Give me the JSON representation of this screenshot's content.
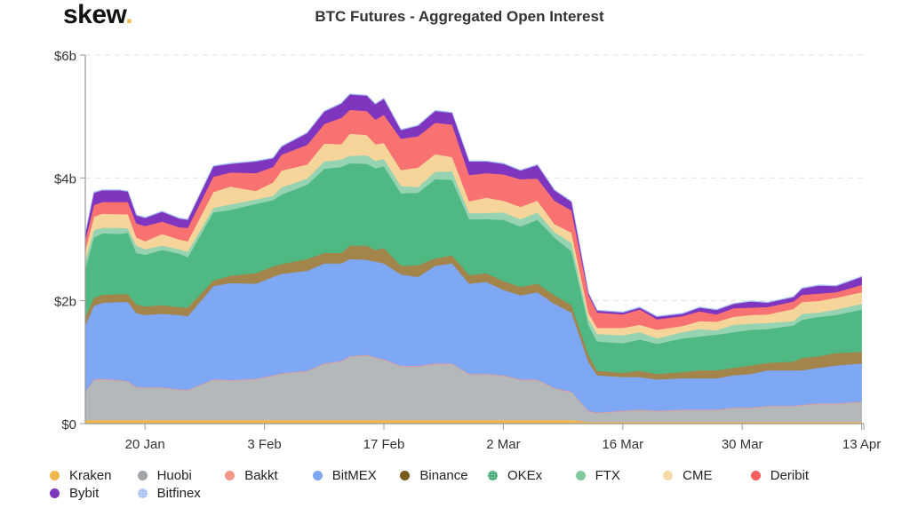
{
  "logo": {
    "text": "skew",
    "dot": "."
  },
  "title": "BTC Futures - Aggregated Open Interest",
  "chart_data": {
    "type": "area",
    "stacked": true,
    "title": "BTC Futures - Aggregated Open Interest",
    "xlabel": "",
    "ylabel": "",
    "unit": "USD billions",
    "ylim": [
      0,
      6
    ],
    "xlim": [
      "2020-01-13",
      "2020-04-13"
    ],
    "grid": "horizontal dashed",
    "legend_position": "bottom",
    "y_ticks": [
      {
        "value": 0,
        "label": "$0"
      },
      {
        "value": 2,
        "label": "$2b"
      },
      {
        "value": 4,
        "label": "$4b"
      },
      {
        "value": 6,
        "label": "$6b"
      }
    ],
    "x_ticks": [
      {
        "date": "2020-01-20",
        "label": "20 Jan"
      },
      {
        "date": "2020-02-03",
        "label": "3 Feb"
      },
      {
        "date": "2020-02-17",
        "label": "17 Feb"
      },
      {
        "date": "2020-03-02",
        "label": "2 Mar"
      },
      {
        "date": "2020-03-16",
        "label": "16 Mar"
      },
      {
        "date": "2020-03-30",
        "label": "30 Mar"
      },
      {
        "date": "2020-04-13",
        "label": "13 Apr"
      }
    ],
    "x": [
      "2020-01-13",
      "2020-01-14",
      "2020-01-15",
      "2020-01-17",
      "2020-01-18",
      "2020-01-19",
      "2020-01-20",
      "2020-01-22",
      "2020-01-24",
      "2020-01-25",
      "2020-01-28",
      "2020-01-30",
      "2020-02-02",
      "2020-02-04",
      "2020-02-05",
      "2020-02-08",
      "2020-02-10",
      "2020-02-12",
      "2020-02-13",
      "2020-02-15",
      "2020-02-16",
      "2020-02-17",
      "2020-02-19",
      "2020-02-21",
      "2020-02-23",
      "2020-02-25",
      "2020-02-27",
      "2020-02-29",
      "2020-03-02",
      "2020-03-04",
      "2020-03-06",
      "2020-03-08",
      "2020-03-10",
      "2020-03-12",
      "2020-03-13",
      "2020-03-16",
      "2020-03-18",
      "2020-03-20",
      "2020-03-23",
      "2020-03-25",
      "2020-03-27",
      "2020-03-29",
      "2020-03-31",
      "2020-04-02",
      "2020-04-05",
      "2020-04-06",
      "2020-04-08",
      "2020-04-10",
      "2020-04-13"
    ],
    "series": [
      {
        "name": "Kraken",
        "color": "#F2B74C",
        "values": [
          0.06,
          0.06,
          0.06,
          0.06,
          0.06,
          0.06,
          0.06,
          0.06,
          0.06,
          0.06,
          0.06,
          0.06,
          0.06,
          0.06,
          0.06,
          0.06,
          0.06,
          0.06,
          0.06,
          0.06,
          0.06,
          0.06,
          0.06,
          0.06,
          0.06,
          0.06,
          0.06,
          0.06,
          0.06,
          0.06,
          0.06,
          0.06,
          0.06,
          0.03,
          0.03,
          0.03,
          0.03,
          0.03,
          0.03,
          0.03,
          0.03,
          0.03,
          0.03,
          0.03,
          0.03,
          0.03,
          0.03,
          0.03,
          0.03
        ]
      },
      {
        "name": "Huobi",
        "color": "#B3B8BA",
        "values": [
          0.45,
          0.65,
          0.66,
          0.64,
          0.62,
          0.53,
          0.52,
          0.52,
          0.49,
          0.48,
          0.65,
          0.64,
          0.66,
          0.72,
          0.75,
          0.79,
          0.91,
          0.95,
          1.03,
          1.05,
          1.01,
          0.98,
          0.87,
          0.87,
          0.91,
          0.91,
          0.74,
          0.74,
          0.72,
          0.65,
          0.65,
          0.51,
          0.45,
          0.17,
          0.14,
          0.17,
          0.19,
          0.17,
          0.19,
          0.19,
          0.19,
          0.22,
          0.22,
          0.25,
          0.25,
          0.27,
          0.29,
          0.29,
          0.32
        ]
      },
      {
        "name": "Bakkt",
        "color": "#F4968A",
        "values": [
          0.01,
          0.01,
          0.01,
          0.01,
          0.01,
          0.01,
          0.01,
          0.01,
          0.01,
          0.01,
          0.01,
          0.01,
          0.01,
          0.01,
          0.01,
          0.01,
          0.01,
          0.01,
          0.01,
          0.01,
          0.01,
          0.01,
          0.01,
          0.01,
          0.01,
          0.01,
          0.01,
          0.01,
          0.01,
          0.01,
          0.01,
          0.01,
          0.01,
          0.01,
          0.01,
          0.01,
          0.01,
          0.01,
          0.01,
          0.01,
          0.01,
          0.01,
          0.01,
          0.01,
          0.01,
          0.01,
          0.01,
          0.01,
          0.01
        ]
      },
      {
        "name": "BitMEX",
        "color": "#7EA7F4",
        "values": [
          1.08,
          1.2,
          1.24,
          1.27,
          1.29,
          1.2,
          1.18,
          1.2,
          1.21,
          1.2,
          1.52,
          1.58,
          1.55,
          1.6,
          1.62,
          1.63,
          1.63,
          1.59,
          1.58,
          1.55,
          1.56,
          1.56,
          1.49,
          1.45,
          1.59,
          1.63,
          1.47,
          1.5,
          1.39,
          1.37,
          1.42,
          1.37,
          1.29,
          0.79,
          0.61,
          0.55,
          0.53,
          0.51,
          0.51,
          0.51,
          0.51,
          0.53,
          0.55,
          0.58,
          0.58,
          0.56,
          0.58,
          0.62,
          0.62
        ]
      },
      {
        "name": "Binance",
        "color": "#A3844A",
        "values": [
          0.14,
          0.13,
          0.13,
          0.13,
          0.13,
          0.14,
          0.14,
          0.14,
          0.13,
          0.14,
          0.09,
          0.12,
          0.17,
          0.17,
          0.16,
          0.19,
          0.17,
          0.17,
          0.22,
          0.23,
          0.19,
          0.25,
          0.14,
          0.19,
          0.12,
          0.13,
          0.14,
          0.14,
          0.14,
          0.14,
          0.14,
          0.14,
          0.12,
          0.12,
          0.07,
          0.07,
          0.1,
          0.09,
          0.1,
          0.13,
          0.13,
          0.12,
          0.14,
          0.12,
          0.14,
          0.2,
          0.19,
          0.2,
          0.19
        ]
      },
      {
        "name": "OKEx",
        "color": "#4FB883",
        "values": [
          0.79,
          0.98,
          1.0,
          0.98,
          1.0,
          0.84,
          0.84,
          0.9,
          0.87,
          0.82,
          1.11,
          1.07,
          1.13,
          1.08,
          1.13,
          1.21,
          1.37,
          1.4,
          1.34,
          1.33,
          1.33,
          1.33,
          1.18,
          1.18,
          1.29,
          1.23,
          0.91,
          0.88,
          1.0,
          0.98,
          1.04,
          0.94,
          0.87,
          0.48,
          0.48,
          0.48,
          0.51,
          0.49,
          0.55,
          0.55,
          0.58,
          0.58,
          0.58,
          0.55,
          0.59,
          0.62,
          0.64,
          0.62,
          0.69
        ]
      },
      {
        "name": "FTX",
        "color": "#95D3B3",
        "values": [
          0.13,
          0.12,
          0.09,
          0.1,
          0.07,
          0.12,
          0.09,
          0.07,
          0.07,
          0.09,
          0.07,
          0.09,
          0.07,
          0.07,
          0.12,
          0.1,
          0.12,
          0.12,
          0.12,
          0.14,
          0.12,
          0.12,
          0.12,
          0.09,
          0.12,
          0.14,
          0.1,
          0.1,
          0.12,
          0.12,
          0.12,
          0.09,
          0.14,
          0.1,
          0.12,
          0.13,
          0.12,
          0.09,
          0.1,
          0.12,
          0.07,
          0.12,
          0.1,
          0.1,
          0.07,
          0.1,
          0.07,
          0.09,
          0.09
        ]
      },
      {
        "name": "CME",
        "color": "#F5D59A",
        "values": [
          0.16,
          0.22,
          0.23,
          0.22,
          0.23,
          0.13,
          0.13,
          0.19,
          0.16,
          0.17,
          0.26,
          0.29,
          0.14,
          0.22,
          0.27,
          0.23,
          0.29,
          0.25,
          0.36,
          0.33,
          0.27,
          0.26,
          0.26,
          0.32,
          0.29,
          0.23,
          0.19,
          0.25,
          0.19,
          0.2,
          0.19,
          0.13,
          0.17,
          0.1,
          0.1,
          0.12,
          0.12,
          0.14,
          0.1,
          0.13,
          0.14,
          0.13,
          0.14,
          0.14,
          0.2,
          0.19,
          0.19,
          0.19,
          0.19
        ]
      },
      {
        "name": "Deribit",
        "color": "#F87272",
        "values": [
          0.17,
          0.19,
          0.19,
          0.2,
          0.2,
          0.23,
          0.25,
          0.2,
          0.2,
          0.22,
          0.25,
          0.23,
          0.29,
          0.25,
          0.26,
          0.32,
          0.32,
          0.43,
          0.39,
          0.39,
          0.4,
          0.46,
          0.51,
          0.51,
          0.51,
          0.53,
          0.43,
          0.4,
          0.43,
          0.45,
          0.36,
          0.38,
          0.36,
          0.29,
          0.25,
          0.22,
          0.25,
          0.17,
          0.16,
          0.16,
          0.12,
          0.14,
          0.12,
          0.12,
          0.12,
          0.12,
          0.12,
          0.09,
          0.12
        ]
      },
      {
        "name": "Bybit",
        "color": "#7F35BE",
        "values": [
          0.1,
          0.2,
          0.19,
          0.19,
          0.17,
          0.13,
          0.13,
          0.16,
          0.14,
          0.13,
          0.17,
          0.14,
          0.19,
          0.14,
          0.13,
          0.19,
          0.2,
          0.23,
          0.25,
          0.25,
          0.25,
          0.26,
          0.14,
          0.17,
          0.19,
          0.19,
          0.22,
          0.19,
          0.17,
          0.14,
          0.22,
          0.17,
          0.14,
          0.03,
          0.03,
          0.03,
          0.03,
          0.04,
          0.04,
          0.06,
          0.07,
          0.07,
          0.1,
          0.07,
          0.07,
          0.1,
          0.13,
          0.1,
          0.13
        ]
      },
      {
        "name": "Bitfinex",
        "color": "#A7BFF2",
        "values": [
          0.01,
          0.01,
          0.01,
          0.01,
          0.01,
          0.01,
          0.01,
          0.01,
          0.01,
          0.01,
          0.01,
          0.01,
          0.01,
          0.01,
          0.01,
          0.01,
          0.01,
          0.01,
          0.01,
          0.01,
          0.01,
          0.01,
          0.01,
          0.01,
          0.01,
          0.01,
          0.01,
          0.01,
          0.01,
          0.01,
          0.01,
          0.01,
          0.01,
          0.01,
          0.01,
          0.01,
          0.01,
          0.01,
          0.01,
          0.01,
          0.01,
          0.01,
          0.01,
          0.01,
          0.01,
          0.01,
          0.01,
          0.01,
          0.01
        ]
      }
    ]
  },
  "legend": [
    {
      "label": "Kraken",
      "color": "#F2B74C",
      "marker": "solid"
    },
    {
      "label": "Huobi",
      "color": "#9EA3A8",
      "marker": "solid"
    },
    {
      "label": "Bakkt",
      "color": "#F4968A",
      "marker": "solid"
    },
    {
      "label": "BitMEX",
      "color": "#7EA7F4",
      "marker": "solid"
    },
    {
      "label": "Binance",
      "color": "#7A5A1E",
      "marker": "solid"
    },
    {
      "label": "OKEx",
      "color": "#2E9E63",
      "marker": "dotted"
    },
    {
      "label": "FTX",
      "color": "#7FCB9F",
      "marker": "solid"
    },
    {
      "label": "CME",
      "color": "#F5CF8A",
      "marker": "dotted"
    },
    {
      "label": "Deribit",
      "color": "#F55F5F",
      "marker": "solid"
    },
    {
      "label": "Bybit",
      "color": "#7F35BE",
      "marker": "solid"
    },
    {
      "label": "Bitfinex",
      "color": "#9DB7F0",
      "marker": "dotted"
    }
  ]
}
